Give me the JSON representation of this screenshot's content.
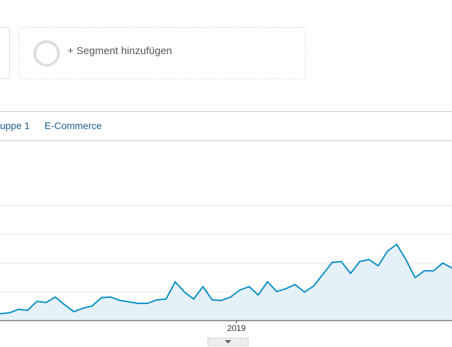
{
  "segments": {
    "add_label": "+ Segment hinzufügen"
  },
  "tabs": [
    "uppe 1",
    "E-Commerce"
  ],
  "chart_data": {
    "type": "area",
    "color": "#058dc7",
    "fill": "#e5f1f8",
    "x_label": "2019",
    "values": [
      0.24,
      0.27,
      0.39,
      0.36,
      0.67,
      0.63,
      0.82,
      0.55,
      0.31,
      0.43,
      0.51,
      0.8,
      0.82,
      0.7,
      0.65,
      0.6,
      0.6,
      0.72,
      0.75,
      1.35,
      0.99,
      0.75,
      1.18,
      0.72,
      0.7,
      0.82,
      1.06,
      1.18,
      0.89,
      1.35,
      1.01,
      1.11,
      1.25,
      0.99,
      1.2,
      1.61,
      2.02,
      2.05,
      1.64,
      2.05,
      2.12,
      1.9,
      2.41,
      2.65,
      2.12,
      1.49,
      1.73,
      1.73,
      2.0,
      1.83
    ],
    "ylim": [
      0,
      6
    ],
    "yticks": [
      0,
      1,
      2,
      3,
      4
    ],
    "grid": true
  }
}
